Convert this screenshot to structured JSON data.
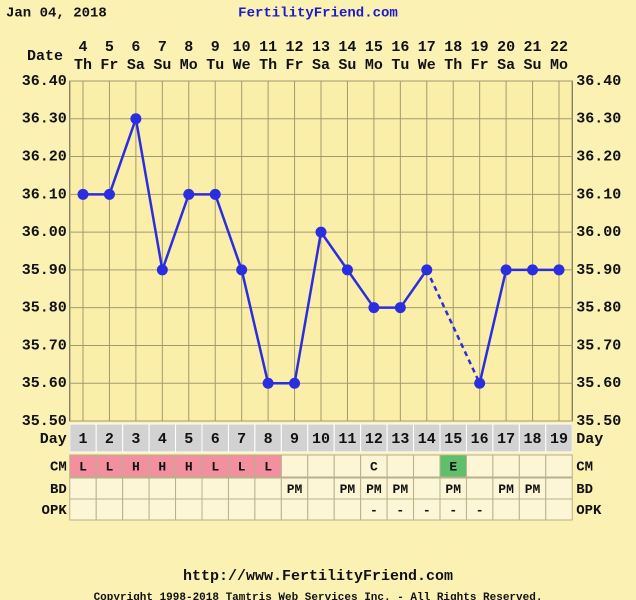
{
  "header": {
    "date": "Jan 04, 2018",
    "site": "FertilityFriend.com"
  },
  "chart_data": {
    "type": "line",
    "date_label": "Date",
    "dates": [
      4,
      5,
      6,
      7,
      8,
      9,
      10,
      11,
      12,
      13,
      14,
      15,
      16,
      17,
      18,
      19,
      20,
      21,
      22
    ],
    "weekdays": [
      "Th",
      "Fr",
      "Sa",
      "Su",
      "Mo",
      "Tu",
      "We",
      "Th",
      "Fr",
      "Sa",
      "Su",
      "Mo",
      "Tu",
      "We",
      "Th",
      "Fr",
      "Sa",
      "Su",
      "Mo"
    ],
    "day_label": "Day",
    "days": [
      1,
      2,
      3,
      4,
      5,
      6,
      7,
      8,
      9,
      10,
      11,
      12,
      13,
      14,
      15,
      16,
      17,
      18,
      19
    ],
    "series": [
      {
        "color": "#2a2ee0",
        "values": [
          36.1,
          36.1,
          36.3,
          35.9,
          36.1,
          36.1,
          35.9,
          35.6,
          35.6,
          36.0,
          35.9,
          35.8,
          35.8,
          35.9,
          null,
          35.6,
          35.9,
          35.9,
          35.9
        ]
      }
    ],
    "gap_style": "dashed",
    "ylim": [
      35.5,
      36.4
    ],
    "yticks": [
      {
        "value": 35.5,
        "label": "35.50"
      },
      {
        "value": 35.6,
        "label": "35.60"
      },
      {
        "value": 35.7,
        "label": "35.70"
      },
      {
        "value": 35.8,
        "label": "35.80"
      },
      {
        "value": 35.9,
        "label": "35.90"
      },
      {
        "value": 36.0,
        "label": "36.00"
      },
      {
        "value": 36.1,
        "label": "36.10"
      },
      {
        "value": 36.2,
        "label": "36.20"
      },
      {
        "value": 36.3,
        "label": "36.30"
      },
      {
        "value": 36.4,
        "label": "36.40"
      }
    ],
    "grid": true,
    "rows": [
      {
        "label": "CM",
        "cells": [
          "L",
          "L",
          "H",
          "H",
          "H",
          "L",
          "L",
          "L",
          null,
          null,
          null,
          "C",
          null,
          null,
          "E",
          null,
          null,
          null,
          null
        ]
      },
      {
        "label": "BD",
        "cells": [
          null,
          null,
          null,
          null,
          null,
          null,
          null,
          null,
          "PM",
          null,
          "PM",
          "PM",
          "PM",
          null,
          "PM",
          null,
          "PM",
          "PM",
          null
        ]
      },
      {
        "label": "OPK",
        "cells": [
          null,
          null,
          null,
          null,
          null,
          null,
          null,
          null,
          null,
          null,
          null,
          "-",
          "-",
          "-",
          "-",
          "-",
          null,
          null,
          null
        ]
      }
    ],
    "cell_colors": {
      "L": "#f2909f",
      "H": "#f2909f",
      "E": "#5fbf6a"
    }
  },
  "footer": {
    "url": "http://www.FertilityFriend.com",
    "copyright": "Copyright 1998-2018 Tamtris Web Services Inc. - All Rights Reserved."
  }
}
